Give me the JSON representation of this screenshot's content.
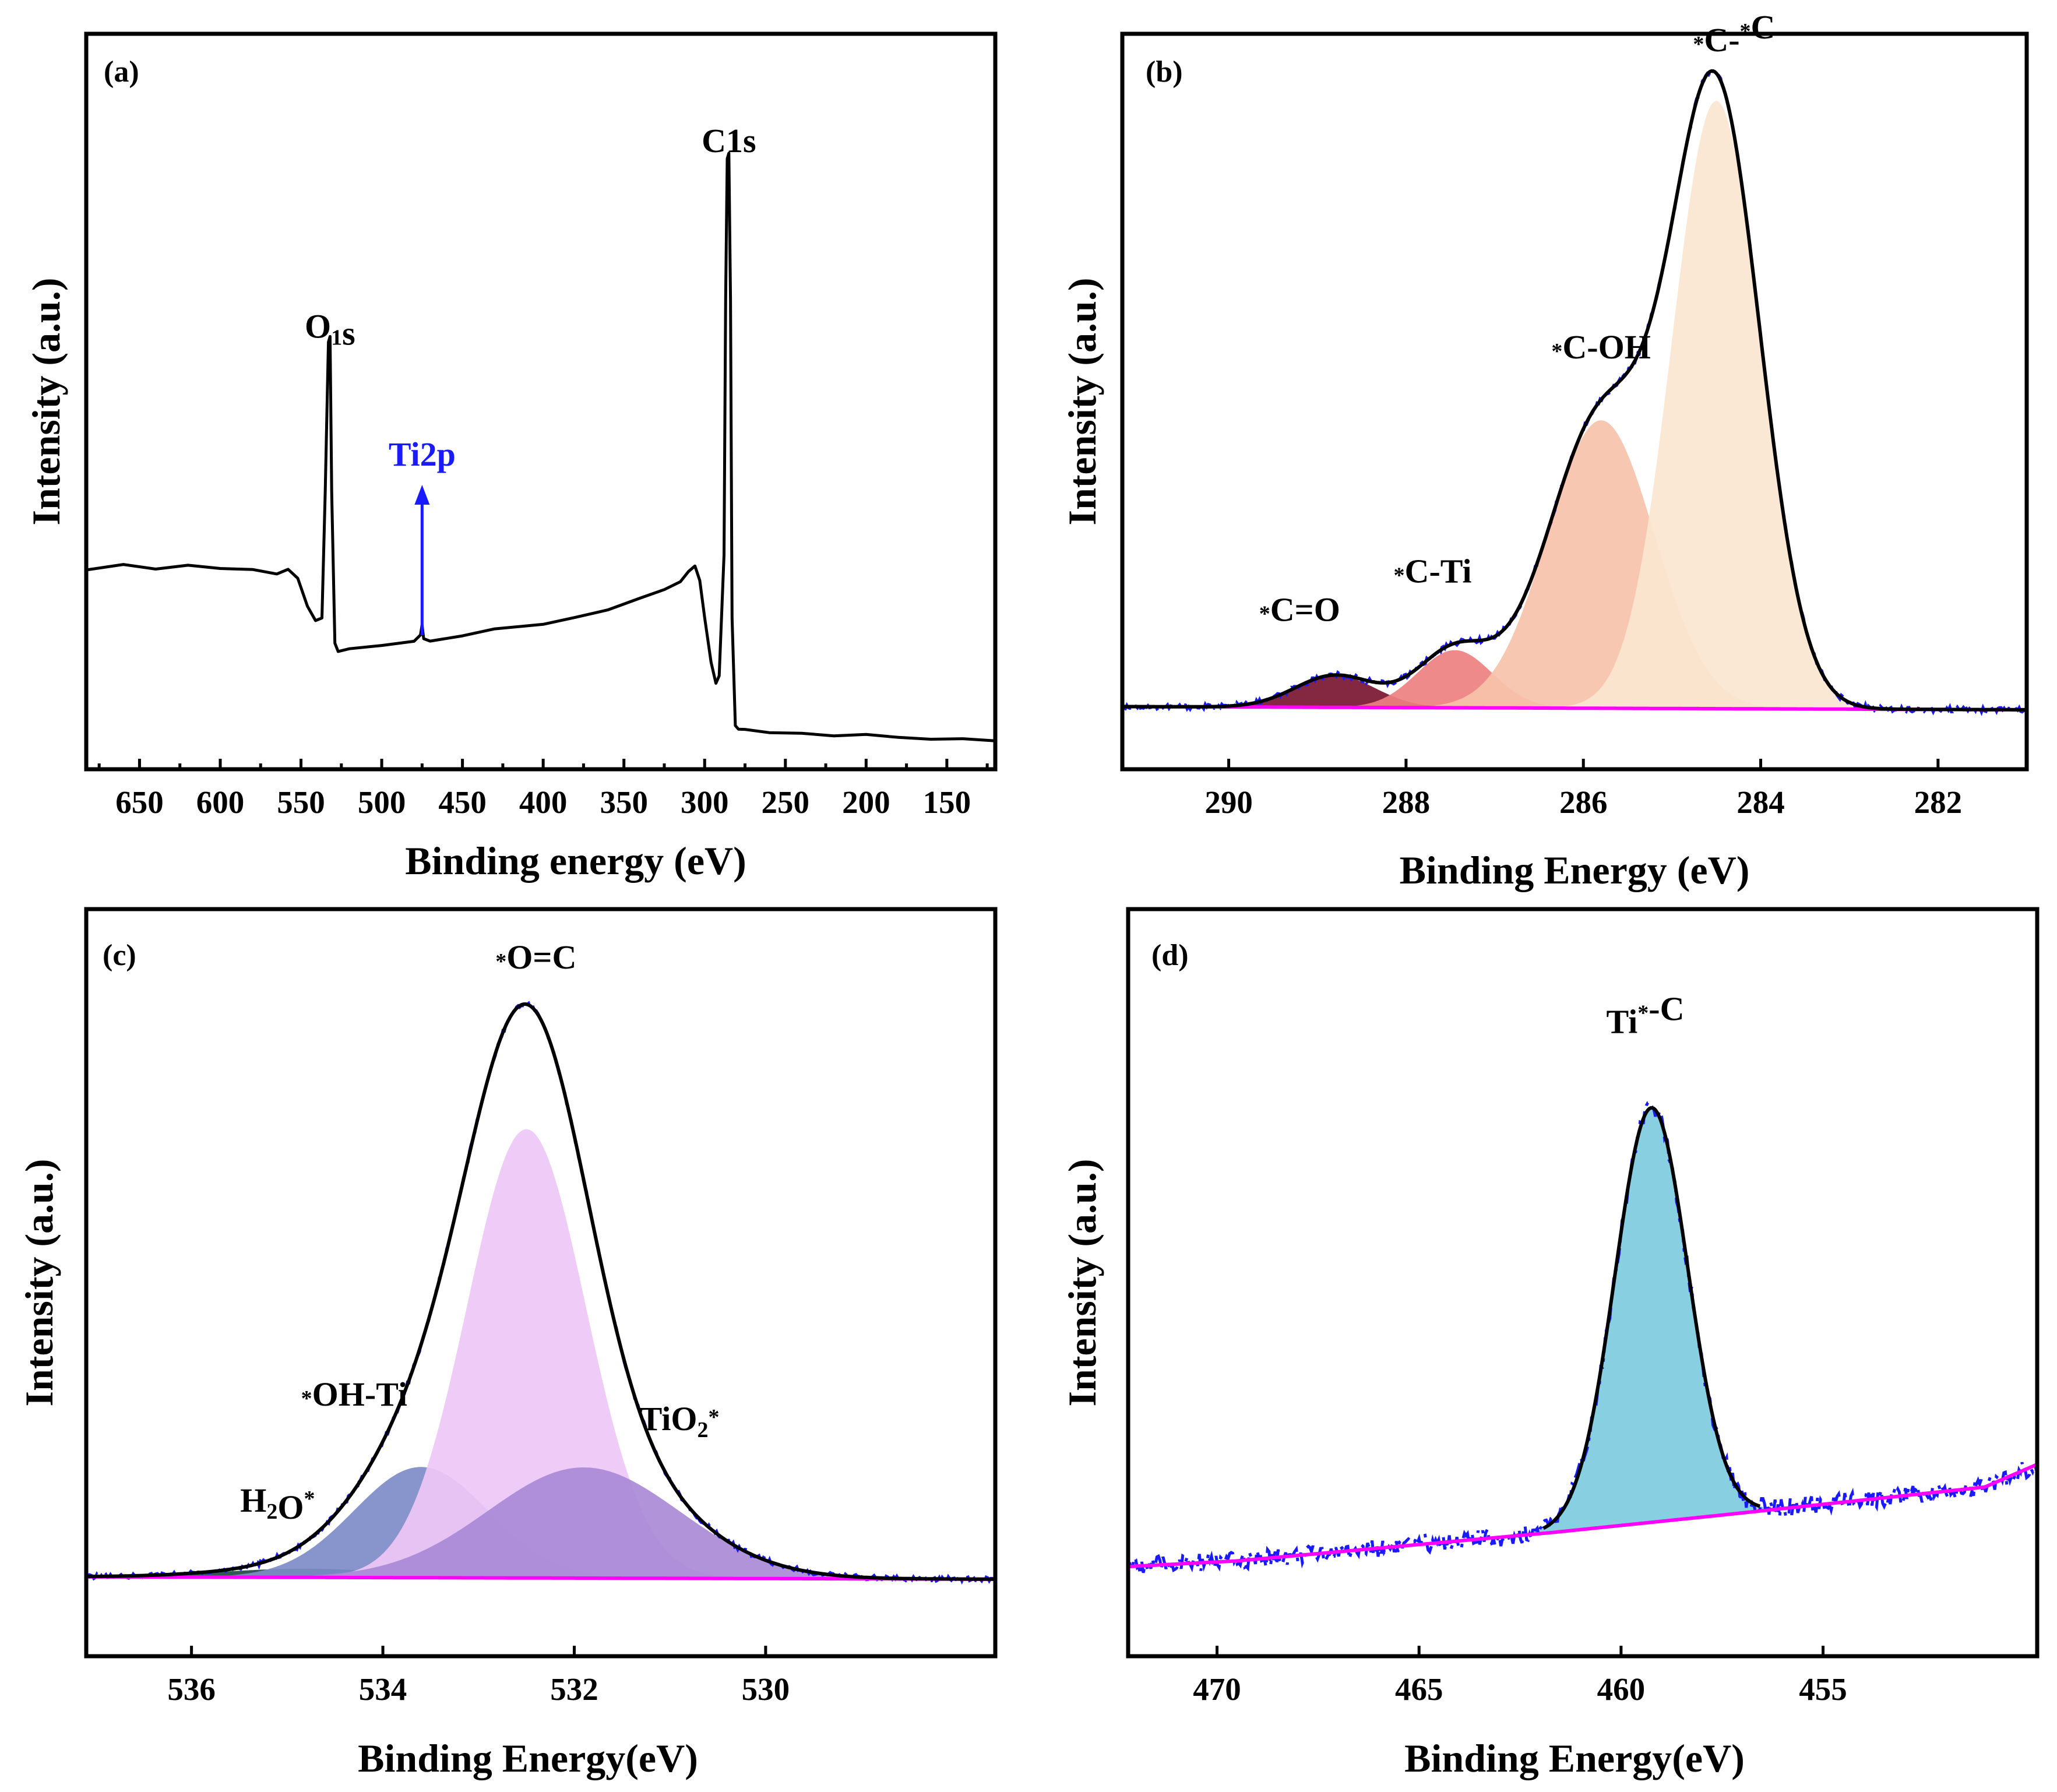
{
  "chart_data": [
    {
      "panel": "(a)",
      "type": "line",
      "xlabel": "Binding energy (eV)",
      "ylabel": "Intensity (a.u.)",
      "xlim": [
        683,
        120
      ],
      "ylim": [
        0,
        100
      ],
      "xticks": [
        650,
        600,
        550,
        500,
        450,
        400,
        350,
        300,
        250,
        200,
        150
      ],
      "annotations": [
        {
          "text": "O1s",
          "x": 532,
          "y": 64
        },
        {
          "text": "C1s",
          "x": 285,
          "y": 93
        },
        {
          "text": "Ti2p",
          "x": 475,
          "y": 44,
          "color": "#1a1aff",
          "arrow": true
        }
      ],
      "series": [
        {
          "name": "survey",
          "color": "#000000",
          "x": [
            683,
            660,
            640,
            620,
            600,
            580,
            565,
            558,
            552,
            546,
            541,
            537,
            535,
            533,
            532,
            531,
            529,
            527,
            520,
            500,
            480,
            476,
            475,
            474,
            470,
            450,
            430,
            400,
            380,
            360,
            340,
            325,
            315,
            310,
            306,
            303,
            300,
            296,
            293,
            291,
            288,
            287,
            286,
            285,
            284,
            283,
            281,
            279,
            275,
            260,
            240,
            220,
            200,
            180,
            160,
            140,
            120
          ],
          "values": [
            28,
            28.3,
            28.1,
            28.4,
            28,
            27.8,
            27,
            28,
            26.5,
            22,
            19.5,
            20,
            40,
            63,
            64,
            40,
            16,
            15,
            15.3,
            16,
            16.4,
            17.5,
            19,
            17,
            16.8,
            17.5,
            18.5,
            19.5,
            20.5,
            21.5,
            23,
            24.5,
            26,
            27.5,
            28.5,
            26,
            20,
            13,
            10,
            11,
            30,
            70,
            92,
            93,
            70,
            20,
            3.5,
            2.8,
            3,
            2.5,
            2.3,
            2,
            1.8,
            1.5,
            1.3,
            1.1,
            1
          ]
        }
      ]
    },
    {
      "panel": "(b)",
      "type": "area",
      "xlabel": "Binding Energy (eV)",
      "ylabel": "Intensity (a.u.)",
      "xlim": [
        291.2,
        281
      ],
      "ylim": [
        0,
        100
      ],
      "xticks": [
        290,
        288,
        286,
        284,
        282
      ],
      "annotations": [
        {
          "text": "*C=O",
          "x": 289.2,
          "y": 12
        },
        {
          "text": "*C-Ti",
          "x": 287.7,
          "y": 18
        },
        {
          "text": "*C-OH",
          "x": 285.8,
          "y": 53
        },
        {
          "text": "*C-*C",
          "x": 284.3,
          "y": 101
        }
      ],
      "baseline": {
        "name": "background",
        "color": "#ff00ff",
        "x": [
          291.2,
          281
        ],
        "values": [
          0.6,
          0.1
        ]
      },
      "components": [
        {
          "name": "*C=O",
          "center": 288.8,
          "height": 5,
          "sigma": 0.45,
          "color": "#7a1530"
        },
        {
          "name": "*C-Ti",
          "center": 287.45,
          "height": 9,
          "sigma": 0.42,
          "color": "#ee8080"
        },
        {
          "name": "*C-OH",
          "center": 285.8,
          "height": 45,
          "sigma": 0.6,
          "color": "#f7c2aa"
        },
        {
          "name": "*C-*C",
          "center": 284.5,
          "height": 95,
          "sigma": 0.5,
          "color": "#fbe6d0"
        }
      ],
      "series": [
        {
          "name": "fit envelope",
          "color": "#000000",
          "style": "solid"
        },
        {
          "name": "raw data",
          "color": "#1a1aff",
          "style": "dashdot"
        }
      ]
    },
    {
      "panel": "(c)",
      "type": "area",
      "xlabel": "Binding Energy(eV)",
      "ylabel": "Intensity (a.u.)",
      "xlim": [
        537.1,
        527.6
      ],
      "ylim": [
        0,
        100
      ],
      "xticks": [
        536,
        534,
        532,
        530
      ],
      "annotations": [
        {
          "text": "H2O*",
          "x": 535.1,
          "y": 12
        },
        {
          "text": "*OH-Ti",
          "x": 534.3,
          "y": 28
        },
        {
          "text": "*O=C",
          "x": 532.4,
          "y": 103
        },
        {
          "text": "TiO2*",
          "x": 530.9,
          "y": 26
        }
      ],
      "baseline": {
        "name": "background",
        "color": "#ff00ff",
        "x": [
          537.1,
          527.6
        ],
        "values": [
          0.8,
          0.4
        ]
      },
      "components": [
        {
          "name": "H2O*",
          "center": 534.8,
          "height": 1.5,
          "sigma": 0.9,
          "color": "#1f4a44"
        },
        {
          "name": "*OH-Ti",
          "center": 533.6,
          "height": 19,
          "sigma": 0.7,
          "color": "#7d8cc8"
        },
        {
          "name": "*O=C",
          "center": 532.5,
          "height": 77,
          "sigma": 0.62,
          "color": "#eec7f6"
        },
        {
          "name": "TiO2*",
          "center": 531.9,
          "height": 19,
          "sigma": 1.0,
          "color": "#a98ad6"
        }
      ],
      "series": [
        {
          "name": "fit envelope",
          "color": "#000000",
          "style": "solid"
        },
        {
          "name": "raw data",
          "color": "#1a1aff",
          "style": "dashdot"
        }
      ]
    },
    {
      "panel": "(d)",
      "type": "area",
      "xlabel": "Binding Energy(eV)",
      "ylabel": "Intensity (a.u.)",
      "xlim": [
        472.2,
        449.7
      ],
      "ylim": [
        0,
        100
      ],
      "xticks": [
        470,
        465,
        460,
        455
      ],
      "annotations": [
        {
          "text": "Ti*-C",
          "x": 459.4,
          "y": 94
        }
      ],
      "baseline": {
        "name": "background",
        "color": "#ff00ff",
        "x": [
          472.2,
          469.5,
          461.7,
          457.6,
          451.0,
          449.7
        ],
        "values": [
          0,
          1,
          6,
          9,
          14,
          18
        ]
      },
      "components": [
        {
          "name": "Ti*-C",
          "center": 459.25,
          "height": 73,
          "sigma": 0.9,
          "color": "#7ecbe0"
        }
      ],
      "series": [
        {
          "name": "fit envelope",
          "color": "#000000",
          "style": "solid"
        },
        {
          "name": "raw data",
          "color": "#1a1aff",
          "style": "dashdot"
        }
      ]
    }
  ]
}
